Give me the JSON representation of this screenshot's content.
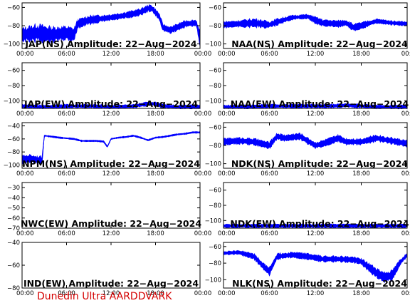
{
  "footer": "Dunedin Ultra AARDDVARK",
  "colors": {
    "trace": "#0000ff",
    "axes": "#000000",
    "footer": "#d40000"
  },
  "x_ticks": [
    "00:00",
    "06:00",
    "12:00",
    "18:00",
    "00:00"
  ],
  "chart_data": [
    {
      "id": "jap-ns",
      "type": "line",
      "title": "JAP(NS) Amplitude: 22−Aug−2024",
      "xlim": [
        0,
        24
      ],
      "ylim": [
        -105,
        -55
      ],
      "yticks": [
        -100,
        -80,
        -60
      ],
      "ytick_labels": [
        "−100",
        "−80",
        "−60"
      ],
      "x": [
        0,
        2,
        4,
        6,
        7,
        7.5,
        9,
        11,
        13,
        15,
        16,
        17,
        17.5,
        18.5,
        19,
        20,
        22,
        23.5,
        24
      ],
      "y": [
        -90,
        -88,
        -90,
        -88,
        -90,
        -78,
        -74,
        -72,
        -70,
        -67,
        -65,
        -61,
        -61,
        -70,
        -82,
        -85,
        -78,
        -77,
        -95
      ],
      "band": [
        6,
        8,
        7,
        6,
        6,
        4,
        4,
        3,
        3,
        3,
        3,
        3,
        3,
        3,
        3,
        3,
        3,
        3,
        6
      ]
    },
    {
      "id": "naa-ns",
      "type": "line",
      "title": "NAA(NS) Amplitude: 22−Aug−2024",
      "xlim": [
        0,
        24
      ],
      "ylim": [
        -105,
        -55
      ],
      "yticks": [
        -100,
        -80,
        -60
      ],
      "ytick_labels": [
        "−100",
        "−80",
        "−60"
      ],
      "x": [
        0,
        2,
        4,
        6,
        7,
        9,
        11,
        12,
        13,
        15,
        16,
        17,
        18,
        20,
        22,
        24
      ],
      "y": [
        -79,
        -78,
        -77,
        -79,
        -76,
        -71,
        -70,
        -74,
        -77,
        -78,
        -77,
        -82,
        -80,
        -75,
        -77,
        -78
      ],
      "band": [
        3,
        3,
        4,
        3,
        3,
        2,
        2,
        3,
        3,
        3,
        3,
        3,
        3,
        2,
        2,
        2
      ]
    },
    {
      "id": "jap-ew",
      "type": "line",
      "title": "JAP(EW) Amplitude: 22−Aug−2024",
      "xlim": [
        0,
        24
      ],
      "ylim": [
        -110,
        -50
      ],
      "yticks": [
        -100,
        -80,
        -60
      ],
      "ytick_labels": [
        "−100",
        "−80",
        "−60"
      ],
      "x": [
        0,
        3,
        6,
        9,
        12,
        15,
        17,
        18,
        19,
        21,
        24
      ],
      "y": [
        -107,
        -108,
        -107,
        -107,
        -108,
        -107,
        -104,
        -104,
        -107,
        -108,
        -108
      ],
      "band": [
        2,
        2,
        2,
        2,
        2,
        2,
        2,
        2,
        2,
        2,
        2
      ]
    },
    {
      "id": "naa-ew",
      "type": "line",
      "title": "NAA(EW) Amplitude: 22−Aug−2024",
      "xlim": [
        0,
        24
      ],
      "ylim": [
        -110,
        -50
      ],
      "yticks": [
        -100,
        -80,
        -60
      ],
      "ytick_labels": [
        "−100",
        "−80",
        "−60"
      ],
      "x": [
        0,
        3,
        6,
        9,
        12,
        14,
        16,
        18,
        20,
        24
      ],
      "y": [
        -108,
        -108,
        -107,
        -107,
        -107,
        -107,
        -106,
        -107,
        -108,
        -108
      ],
      "band": [
        2,
        2,
        2,
        2,
        2,
        2,
        2,
        2,
        2,
        2
      ]
    },
    {
      "id": "npm-ns",
      "type": "line",
      "title": "NPM(NS) Amplitude: 22−Aug−2024",
      "xlim": [
        0,
        24
      ],
      "ylim": [
        -105,
        -35
      ],
      "yticks": [
        -100,
        -80,
        -60,
        -40
      ],
      "ytick_labels": [
        "−100",
        "−80",
        "−60",
        "−40"
      ],
      "x": [
        0,
        1,
        2,
        2.7,
        3,
        5,
        7,
        8,
        9,
        10,
        11,
        11.5,
        12,
        13,
        14,
        15,
        16,
        17,
        18,
        19,
        20,
        21,
        22,
        23,
        24
      ],
      "y": [
        -92,
        -90,
        -92,
        -93,
        -55,
        -58,
        -60,
        -63,
        -63,
        -63,
        -64,
        -72,
        -60,
        -58,
        -57,
        -55,
        -58,
        -62,
        -58,
        -57,
        -55,
        -53,
        -52,
        -50,
        -50
      ],
      "band": [
        5,
        5,
        5,
        5,
        1,
        1,
        1,
        1,
        1,
        1,
        1,
        1,
        1,
        1,
        1,
        1,
        1,
        1,
        1,
        1,
        1,
        1,
        1,
        1,
        1
      ]
    },
    {
      "id": "ndk-ns",
      "type": "line",
      "title": "NDK(NS) Amplitude: 22−Aug−2024",
      "xlim": [
        0,
        24
      ],
      "ylim": [
        -105,
        -55
      ],
      "yticks": [
        -100,
        -80,
        -60
      ],
      "ytick_labels": [
        "−100",
        "−80",
        "−60"
      ],
      "x": [
        0,
        2,
        4,
        6,
        7,
        8,
        10,
        11,
        12,
        13,
        14,
        15,
        16,
        18,
        20,
        22,
        24
      ],
      "y": [
        -76,
        -75,
        -76,
        -80,
        -70,
        -72,
        -70,
        -75,
        -80,
        -78,
        -75,
        -72,
        -76,
        -76,
        -72,
        -75,
        -78
      ],
      "band": [
        3,
        3,
        3,
        3,
        3,
        3,
        3,
        3,
        3,
        3,
        3,
        3,
        3,
        3,
        3,
        3,
        3
      ]
    },
    {
      "id": "nwc-ew",
      "type": "line",
      "title": "NWC(EW) Amplitude: 22−Aug−2024",
      "xlim": [
        0,
        24
      ],
      "ylim": [
        -70,
        -25
      ],
      "yticks": [
        -70,
        -60,
        -50,
        -40,
        -30
      ],
      "ytick_labels": [
        "−70",
        "−60",
        "−50",
        "−40",
        "−30"
      ],
      "x": [],
      "y": [],
      "band": []
    },
    {
      "id": "ndk-ew",
      "type": "line",
      "title": "NDK(EW) Amplitude: 22−Aug−2024",
      "xlim": [
        0,
        24
      ],
      "ylim": [
        -110,
        -50
      ],
      "yticks": [
        -100,
        -80,
        -60
      ],
      "ytick_labels": [
        "−100",
        "−80",
        "−60"
      ],
      "x": [
        0,
        4,
        8,
        12,
        16,
        20,
        24
      ],
      "y": [
        -107,
        -107,
        -107,
        -107,
        -107,
        -107,
        -107
      ],
      "band": [
        2,
        2,
        2,
        2,
        2,
        2,
        2
      ]
    },
    {
      "id": "ind-ew",
      "type": "line",
      "title": "IND(EW) Amplitude: 22−Aug−2024",
      "xlim": [
        0,
        24
      ],
      "ylim": [
        -80,
        -40
      ],
      "yticks": [
        -80,
        -60,
        -40
      ],
      "ytick_labels": [
        "−80",
        "−60",
        "−40"
      ],
      "x": [],
      "y": [],
      "band": []
    },
    {
      "id": "nlk-ns",
      "type": "line",
      "title": "NLK(NS) Amplitude: 22−Aug−2024",
      "xlim": [
        0,
        24
      ],
      "ylim": [
        -110,
        -55
      ],
      "yticks": [
        -100,
        -80,
        -60
      ],
      "ytick_labels": [
        "−100",
        "−80",
        "−60"
      ],
      "x": [
        0,
        2,
        4,
        5,
        6,
        7,
        9,
        11,
        13,
        15,
        17,
        18,
        19,
        20,
        21,
        22,
        22.5,
        23,
        24
      ],
      "y": [
        -68,
        -67,
        -72,
        -82,
        -90,
        -72,
        -70,
        -72,
        -75,
        -75,
        -76,
        -78,
        -85,
        -92,
        -97,
        -95,
        -88,
        -80,
        -70
      ],
      "band": [
        2,
        2,
        3,
        3,
        4,
        3,
        3,
        3,
        3,
        3,
        3,
        3,
        4,
        5,
        5,
        5,
        4,
        3,
        2
      ]
    }
  ]
}
